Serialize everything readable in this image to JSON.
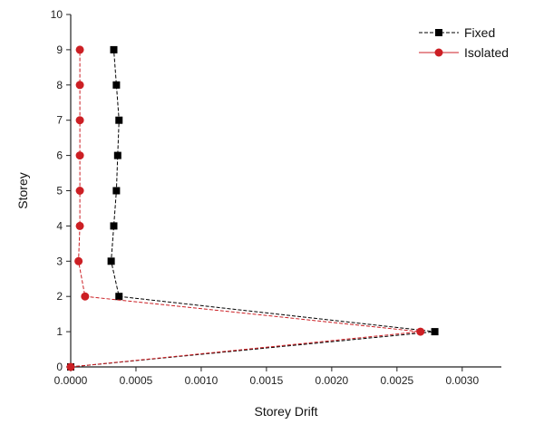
{
  "chart_data": {
    "type": "line",
    "title": "",
    "xlabel": "Storey Drift",
    "ylabel": "Storey",
    "xlim": [
      0,
      0.0033
    ],
    "ylim": [
      0,
      10
    ],
    "x_ticks": [
      "0.0000",
      "0.0005",
      "0.0010",
      "0.0015",
      "0.0020",
      "0.0025",
      "0.0030"
    ],
    "x_tick_values": [
      0,
      0.0005,
      0.001,
      0.0015,
      0.002,
      0.0025,
      0.003
    ],
    "y_ticks": [
      "0",
      "1",
      "2",
      "3",
      "4",
      "5",
      "6",
      "7",
      "8",
      "9",
      "10"
    ],
    "y_tick_values": [
      0,
      1,
      2,
      3,
      4,
      5,
      6,
      7,
      8,
      9,
      10
    ],
    "grid": false,
    "legend_position": "top-right",
    "series": [
      {
        "name": "Fixed",
        "marker": "square",
        "color": "#000000",
        "points": [
          {
            "x": 0.0,
            "y": 0
          },
          {
            "x": 0.00279,
            "y": 1
          },
          {
            "x": 0.00037,
            "y": 2
          },
          {
            "x": 0.00031,
            "y": 3
          },
          {
            "x": 0.00033,
            "y": 4
          },
          {
            "x": 0.00035,
            "y": 5
          },
          {
            "x": 0.00036,
            "y": 6
          },
          {
            "x": 0.00037,
            "y": 7
          },
          {
            "x": 0.00035,
            "y": 8
          },
          {
            "x": 0.00033,
            "y": 9
          }
        ]
      },
      {
        "name": "Isolated",
        "marker": "circle",
        "color": "#cc1f24",
        "points": [
          {
            "x": 0.0,
            "y": 0
          },
          {
            "x": 0.00268,
            "y": 1
          },
          {
            "x": 0.00011,
            "y": 2
          },
          {
            "x": 6e-05,
            "y": 3
          },
          {
            "x": 7e-05,
            "y": 4
          },
          {
            "x": 7e-05,
            "y": 5
          },
          {
            "x": 7e-05,
            "y": 6
          },
          {
            "x": 7e-05,
            "y": 7
          },
          {
            "x": 7e-05,
            "y": 8
          },
          {
            "x": 7e-05,
            "y": 9
          }
        ]
      }
    ]
  }
}
